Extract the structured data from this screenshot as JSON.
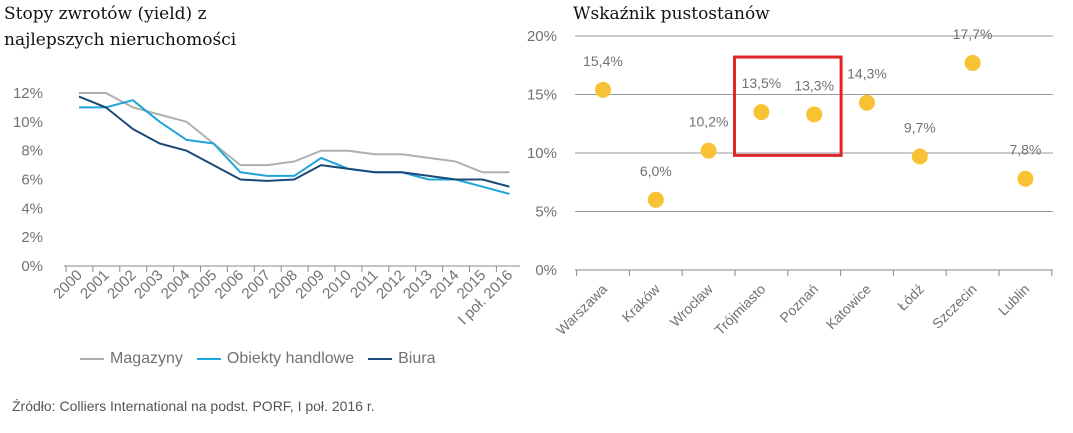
{
  "left_chart": {
    "title": "Stopy zwrotów (yield) z najlepszych nieruchomości"
  },
  "right_chart": {
    "title": "Wskaźnik pustostanów"
  },
  "source": "Źródło: Colliers International na podst. PORF, I poł. 2016 r.",
  "colors": {
    "magazyny": "#b0b0b0",
    "obiekty": "#1fa5d8",
    "biura": "#1a4a7a",
    "dots": "#f7c234",
    "highlight": "#e0262c",
    "grid": "#9a9a9a",
    "axis": "#8a8a8a"
  },
  "chart_data": [
    {
      "type": "line",
      "title": "Stopy zwrotów (yield) z najlepszych nieruchomości",
      "categories": [
        "2000",
        "2001",
        "2002",
        "2003",
        "2004",
        "2005",
        "2006",
        "2007",
        "2008",
        "2009",
        "2010",
        "2011",
        "2012",
        "2013",
        "2014",
        "2015",
        "I poł. 2016"
      ],
      "y_ticks": [
        "0%",
        "2%",
        "4%",
        "6%",
        "8%",
        "10%",
        "12%"
      ],
      "ylim": [
        0,
        12
      ],
      "grid": false,
      "legend_position": "bottom",
      "series": [
        {
          "name": "Magazyny",
          "values": [
            12.0,
            12.0,
            11.0,
            10.5,
            10.0,
            8.5,
            7.0,
            7.0,
            7.25,
            8.0,
            8.0,
            7.75,
            7.75,
            7.5,
            7.25,
            6.5,
            6.5
          ]
        },
        {
          "name": "Obiekty handlowe",
          "values": [
            11.0,
            11.0,
            11.5,
            10.0,
            8.75,
            8.5,
            6.5,
            6.25,
            6.25,
            7.5,
            6.75,
            6.5,
            6.5,
            6.0,
            6.0,
            5.5,
            5.0
          ]
        },
        {
          "name": "Biura",
          "values": [
            11.75,
            11.0,
            9.5,
            8.5,
            8.0,
            7.0,
            6.0,
            5.9,
            6.0,
            7.0,
            6.75,
            6.5,
            6.5,
            6.25,
            6.0,
            6.0,
            5.5
          ]
        }
      ]
    },
    {
      "type": "scatter",
      "title": "Wskaźnik pustostanów",
      "categories": [
        "Warszawa",
        "Kraków",
        "Wrocław",
        "Trójmiasto",
        "Poznań",
        "Katowice",
        "Łódź",
        "Szczecin",
        "Lublin"
      ],
      "values": [
        15.4,
        6.0,
        10.2,
        13.5,
        13.3,
        14.3,
        9.7,
        17.7,
        7.8
      ],
      "data_labels": [
        "15,4%",
        "6,0%",
        "10,2%",
        "13,5%",
        "13,3%",
        "14,3%",
        "9,7%",
        "17,7%",
        "7,8%"
      ],
      "y_ticks": [
        "0%",
        "5%",
        "10%",
        "15%",
        "20%"
      ],
      "ylim": [
        0,
        20
      ],
      "grid": true,
      "highlighted": [
        "Trójmiasto",
        "Poznań"
      ]
    }
  ]
}
